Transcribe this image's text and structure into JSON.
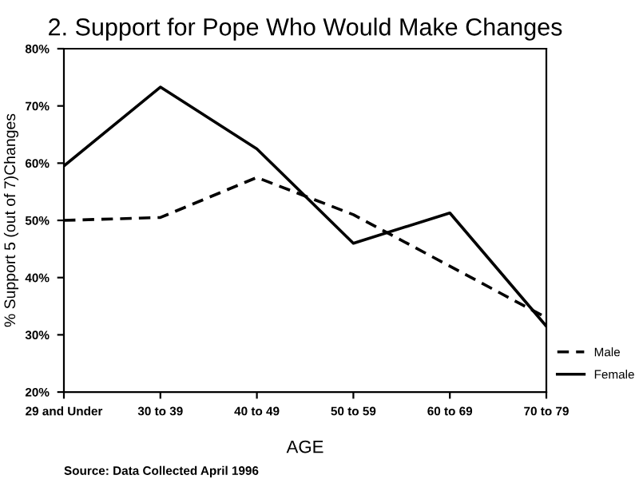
{
  "chart_data": {
    "type": "line",
    "title": "2. Support for Pope Who Would Make Changes",
    "xlabel": "AGE",
    "ylabel": "% Support 5 (out of 7)Changes",
    "categories": [
      "29 and Under",
      "30 to 39",
      "40 to 49",
      "50 to 59",
      "60 to 69",
      "70 to 79"
    ],
    "series": [
      {
        "name": "Male",
        "color": "#000000",
        "line_style": "dashed",
        "values": [
          50,
          50.5,
          57.5,
          51,
          42,
          33
        ]
      },
      {
        "name": "Female",
        "color": "#000000",
        "line_style": "solid",
        "values": [
          59.5,
          73.3,
          62.5,
          46,
          51.3,
          31.5
        ]
      }
    ],
    "ylim": [
      20,
      80
    ],
    "yticks": [
      {
        "value": 20,
        "label": "20%"
      },
      {
        "value": 30,
        "label": "30%"
      },
      {
        "value": 40,
        "label": "40%"
      },
      {
        "value": 50,
        "label": "50%"
      },
      {
        "value": 60,
        "label": "60%"
      },
      {
        "value": 70,
        "label": "70%"
      },
      {
        "value": 80,
        "label": "80%"
      }
    ],
    "grid": false,
    "legend": "bottom right",
    "annotations": [
      "Source: Data Collected April 1996"
    ]
  }
}
